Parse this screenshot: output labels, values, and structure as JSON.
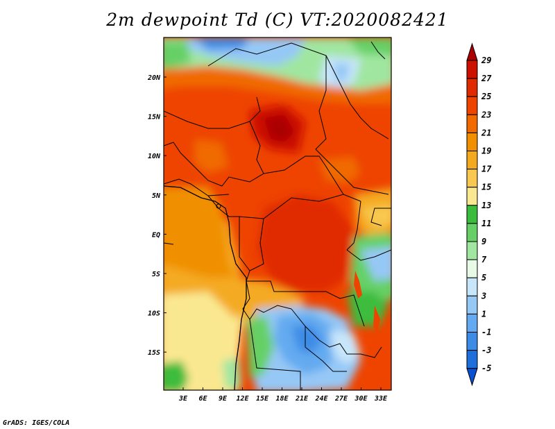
{
  "title": "2m dewpoint Td (C) VT:2020082421",
  "credit": "GrADS: IGES/COLA",
  "map": {
    "lat_labels": [
      "20N",
      "15N",
      "10N",
      "5N",
      "EQ",
      "5S",
      "10S",
      "15S"
    ],
    "lon_labels": [
      "3E",
      "6E",
      "9E",
      "12E",
      "15E",
      "18E",
      "21E",
      "24E",
      "27E",
      "30E",
      "33E"
    ]
  },
  "colorbar": {
    "labels": [
      "29",
      "27",
      "25",
      "23",
      "21",
      "19",
      "17",
      "15",
      "13",
      "11",
      "9",
      "7",
      "5",
      "3",
      "1",
      "-1",
      "-3",
      "-5"
    ],
    "colors": [
      "#aa0000",
      "#cc1100",
      "#e02a00",
      "#ee4400",
      "#f06a00",
      "#f09000",
      "#f4aa20",
      "#f8c850",
      "#fae890",
      "#3cbc3c",
      "#66d066",
      "#a0e6a0",
      "#e6fae6",
      "#c8e6fa",
      "#96c8f6",
      "#64aaf0",
      "#3c8ce6",
      "#1e6edc",
      "#0a50d2"
    ]
  }
}
